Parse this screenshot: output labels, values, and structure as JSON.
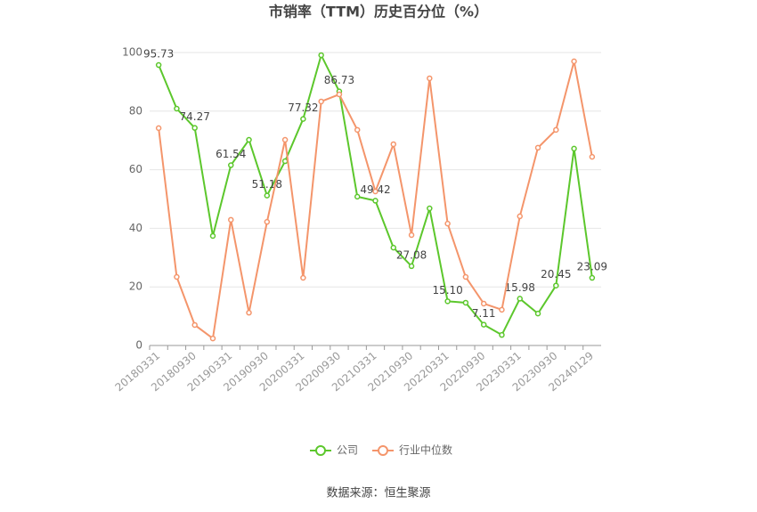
{
  "chart_data": {
    "type": "line",
    "title": "市销率（TTM）历史百分位（%）",
    "categories": [
      "20180331",
      null,
      "20180930",
      null,
      "20190331",
      null,
      "20190930",
      null,
      "20200331",
      null,
      "20200930",
      null,
      "20210331",
      null,
      "20210930",
      null,
      "20220331",
      null,
      "20220930",
      null,
      "20230331",
      null,
      "20230930",
      null,
      "20240129"
    ],
    "series": [
      {
        "name": "公司",
        "color": "#5cc72c",
        "values": [
          95.73,
          80.85,
          74.27,
          37.4,
          61.54,
          70.2,
          51.18,
          62.9,
          77.32,
          99.1,
          86.73,
          50.8,
          49.42,
          33.4,
          27.08,
          46.8,
          15.1,
          14.6,
          7.11,
          3.6,
          15.98,
          10.9,
          20.45,
          67.2,
          23.09
        ],
        "value_labels": [
          "95.73",
          null,
          "74.27",
          null,
          "61.54",
          null,
          "51.18",
          null,
          "77.32",
          null,
          "86.73",
          null,
          "49.42",
          null,
          "27.08",
          null,
          "15.10",
          null,
          "7.11",
          null,
          "15.98",
          null,
          "20.45",
          null,
          "23.09"
        ]
      },
      {
        "name": "行业中位数",
        "color": "#f4956b",
        "values": [
          74.2,
          23.4,
          7.0,
          2.4,
          42.9,
          11.2,
          42.2,
          70.2,
          23.1,
          83.3,
          85.7,
          73.6,
          52.6,
          68.7,
          37.7,
          91.2,
          41.6,
          23.4,
          14.3,
          12.2,
          44.1,
          67.5,
          73.6,
          97.0,
          64.4
        ]
      }
    ],
    "ylim": [
      0,
      100
    ],
    "yticks": [
      0,
      20,
      40,
      60,
      80,
      100
    ],
    "grid": true,
    "legend": "bottom",
    "source": "数据来源：恒生聚源"
  }
}
